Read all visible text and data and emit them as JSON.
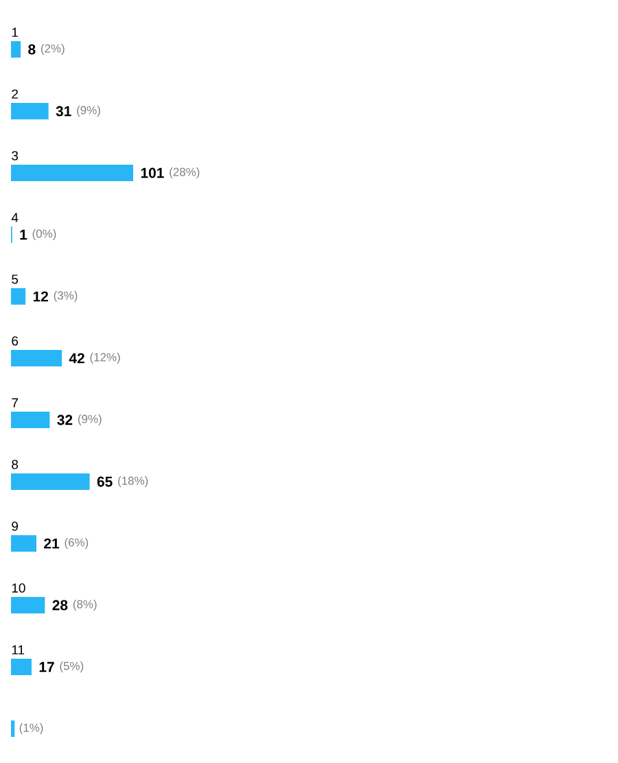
{
  "chart_data": {
    "type": "bar",
    "orientation": "horizontal",
    "categories": [
      "1",
      "2",
      "3",
      "4",
      "5",
      "6",
      "7",
      "8",
      "9",
      "10",
      "11",
      null
    ],
    "values": [
      8,
      31,
      101,
      1,
      12,
      42,
      32,
      65,
      21,
      28,
      17,
      3
    ],
    "value_labels": [
      "8",
      "31",
      "101",
      "1",
      "12",
      "42",
      "32",
      "65",
      "21",
      "28",
      "17",
      null
    ],
    "color": "#29b6f6",
    "annotations": [
      "(2%)",
      "(9%)",
      "(28%)",
      "(0%)",
      "(3%)",
      "(12%)",
      "(9%)",
      "(18%)",
      "(6%)",
      "(8%)",
      "(5%)",
      "(1%)"
    ]
  }
}
